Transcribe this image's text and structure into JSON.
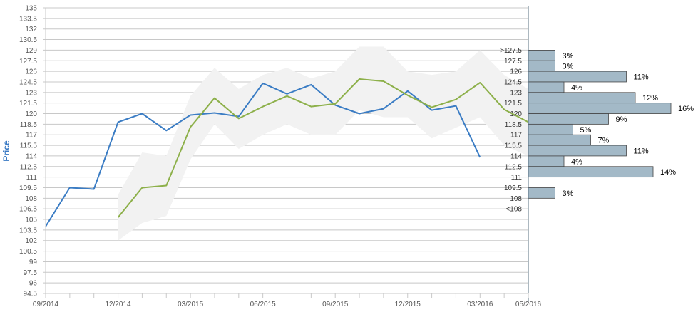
{
  "chart_data": {
    "type": "line",
    "title": "",
    "ylabel": "Price",
    "xlabel": "",
    "ylim": [
      94.5,
      135
    ],
    "yticks": [
      "94.5",
      "96",
      "97.5",
      "99",
      "100.5",
      "102",
      "103.5",
      "105",
      "106.5",
      "108",
      "109.5",
      "111",
      "112.5",
      "114",
      "115.5",
      "117",
      "118.5",
      "120",
      "121.5",
      "123",
      "124.5",
      "126",
      "127.5",
      "129",
      "130.5",
      "132",
      "133.5",
      "135"
    ],
    "xticks": [
      "09/2014",
      "12/2014",
      "03/2015",
      "06/2015",
      "09/2015",
      "12/2015",
      "03/2016",
      "05/2016"
    ],
    "grid": true,
    "series": [
      {
        "color": "#3a7cc4",
        "points": [
          [
            "2014-09",
            104.0
          ],
          [
            "2014-10",
            109.5
          ],
          [
            "2014-11",
            109.3
          ],
          [
            "2014-12",
            118.8
          ],
          [
            "2015-01",
            120.0
          ],
          [
            "2015-02",
            117.6
          ],
          [
            "2015-03",
            119.8
          ],
          [
            "2015-04",
            120.1
          ],
          [
            "2015-05",
            119.6
          ],
          [
            "2015-06",
            124.3
          ],
          [
            "2015-07",
            122.8
          ],
          [
            "2015-08",
            124.1
          ],
          [
            "2015-09",
            121.2
          ],
          [
            "2015-10",
            120.0
          ],
          [
            "2015-11",
            120.7
          ],
          [
            "2015-12",
            123.2
          ],
          [
            "2016-01",
            120.5
          ],
          [
            "2016-02",
            121.1
          ],
          [
            "2016-03",
            113.8
          ]
        ]
      },
      {
        "color": "#8db04a",
        "points": [
          [
            "2014-12",
            105.3
          ],
          [
            "2015-01",
            109.5
          ],
          [
            "2015-02",
            109.8
          ],
          [
            "2015-03",
            118.1
          ],
          [
            "2015-04",
            122.2
          ],
          [
            "2015-05",
            119.3
          ],
          [
            "2015-06",
            121.0
          ],
          [
            "2015-07",
            122.5
          ],
          [
            "2015-08",
            121.0
          ],
          [
            "2015-09",
            121.4
          ],
          [
            "2015-10",
            124.9
          ],
          [
            "2015-11",
            124.6
          ],
          [
            "2015-12",
            122.6
          ],
          [
            "2016-01",
            120.9
          ],
          [
            "2016-02",
            122.0
          ],
          [
            "2016-03",
            124.4
          ],
          [
            "2016-04",
            120.6
          ],
          [
            "2016-05",
            118.8
          ]
        ]
      }
    ],
    "band": {
      "color": "#f2f2f2",
      "upper": [
        [
          "2014-12",
          108.5
        ],
        [
          "2015-01",
          114.5
        ],
        [
          "2015-02",
          114.0
        ],
        [
          "2015-03",
          122.5
        ],
        [
          "2015-04",
          126.5
        ],
        [
          "2015-05",
          123.5
        ],
        [
          "2015-06",
          125.5
        ],
        [
          "2015-07",
          126.5
        ],
        [
          "2015-08",
          125.0
        ],
        [
          "2015-09",
          126.0
        ],
        [
          "2015-10",
          129.5
        ],
        [
          "2015-11",
          129.5
        ],
        [
          "2015-12",
          126.0
        ],
        [
          "2016-01",
          125.5
        ],
        [
          "2016-02",
          126.0
        ],
        [
          "2016-03",
          129.0
        ],
        [
          "2016-04",
          125.5
        ],
        [
          "2016-05",
          123.5
        ]
      ],
      "lower": [
        [
          "2014-12",
          102.0
        ],
        [
          "2015-01",
          104.5
        ],
        [
          "2015-02",
          105.5
        ],
        [
          "2015-03",
          113.5
        ],
        [
          "2015-04",
          118.5
        ],
        [
          "2015-05",
          115.0
        ],
        [
          "2015-06",
          117.0
        ],
        [
          "2015-07",
          118.5
        ],
        [
          "2015-08",
          117.0
        ],
        [
          "2015-09",
          117.0
        ],
        [
          "2015-10",
          120.5
        ],
        [
          "2015-11",
          119.5
        ],
        [
          "2015-12",
          119.5
        ],
        [
          "2016-01",
          116.5
        ],
        [
          "2016-02",
          118.0
        ],
        [
          "2016-03",
          119.5
        ],
        [
          "2016-04",
          115.5
        ],
        [
          "2016-05",
          114.0
        ]
      ]
    },
    "distribution": {
      "bar_color": "#a3b9c7",
      "labels": [
        ">127.5",
        "127.5",
        "126",
        "124.5",
        "123",
        "121.5",
        "120",
        "118.5",
        "117",
        "115.5",
        "114",
        "112.5",
        "111",
        "109.5",
        "108",
        "<108"
      ],
      "bins": [
        {
          "range": [
            127.5,
            129
          ],
          "percent": "3%",
          "value": 3
        },
        {
          "range": [
            126,
            127.5
          ],
          "percent": "3%",
          "value": 3
        },
        {
          "range": [
            124.5,
            126
          ],
          "percent": "11%",
          "value": 11
        },
        {
          "range": [
            123,
            124.5
          ],
          "percent": "4%",
          "value": 4
        },
        {
          "range": [
            121.5,
            123
          ],
          "percent": "12%",
          "value": 12
        },
        {
          "range": [
            120,
            121.5
          ],
          "percent": "16%",
          "value": 16
        },
        {
          "range": [
            118.5,
            120
          ],
          "percent": "9%",
          "value": 9
        },
        {
          "range": [
            117,
            118.5
          ],
          "percent": "5%",
          "value": 5
        },
        {
          "range": [
            115.5,
            117
          ],
          "percent": "7%",
          "value": 7
        },
        {
          "range": [
            114,
            115.5
          ],
          "percent": "11%",
          "value": 11
        },
        {
          "range": [
            112.5,
            114
          ],
          "percent": "4%",
          "value": 4
        },
        {
          "range": [
            111,
            112.5
          ],
          "percent": "14%",
          "value": 14
        },
        {
          "range": [
            108,
            109.5
          ],
          "percent": "3%",
          "value": 3
        }
      ]
    }
  }
}
